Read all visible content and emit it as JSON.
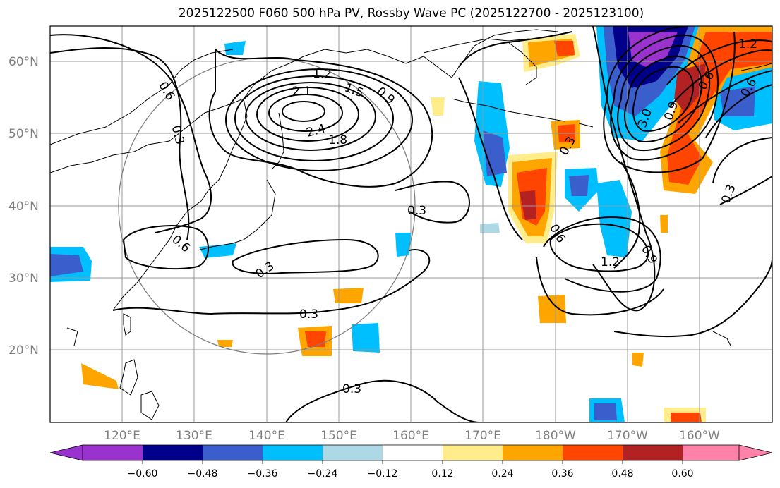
{
  "title": "2025122500 F060 500 hPa PV, Rossby Wave PC (2025122700 - 2025123100)",
  "latitude_labels": [
    "60°N",
    "50°N",
    "40°N",
    "30°N",
    "20°N"
  ],
  "longitude_labels": [
    "120°E",
    "130°E",
    "140°E",
    "150°E",
    "160°E",
    "170°E",
    "180°W",
    "170°W",
    "160°W"
  ],
  "contour_labels": [
    "0.6",
    "0.3",
    "1.2",
    "2.1",
    "1.5",
    "0.9",
    "2.4",
    "1.8",
    "0.3",
    "0.6",
    "0.3",
    "0.3",
    "0.3",
    "0.3",
    "0.6",
    "1.2",
    "0.9",
    "0.3",
    "3.0",
    "0.9",
    "0.6",
    "1.2",
    "0.6"
  ],
  "colorbar": {
    "ticks": [
      "−0.60",
      "−0.48",
      "−0.36",
      "−0.24",
      "−0.12",
      "0.12",
      "0.24",
      "0.36",
      "0.48",
      "0.60"
    ],
    "colors": [
      "#9a32cd",
      "#00008b",
      "#3a5fcd",
      "#00bfff",
      "#add8e6",
      "#ffffff",
      "#ffec8b",
      "#ffa500",
      "#ff4500",
      "#b22222",
      "#ff82ab"
    ]
  }
}
